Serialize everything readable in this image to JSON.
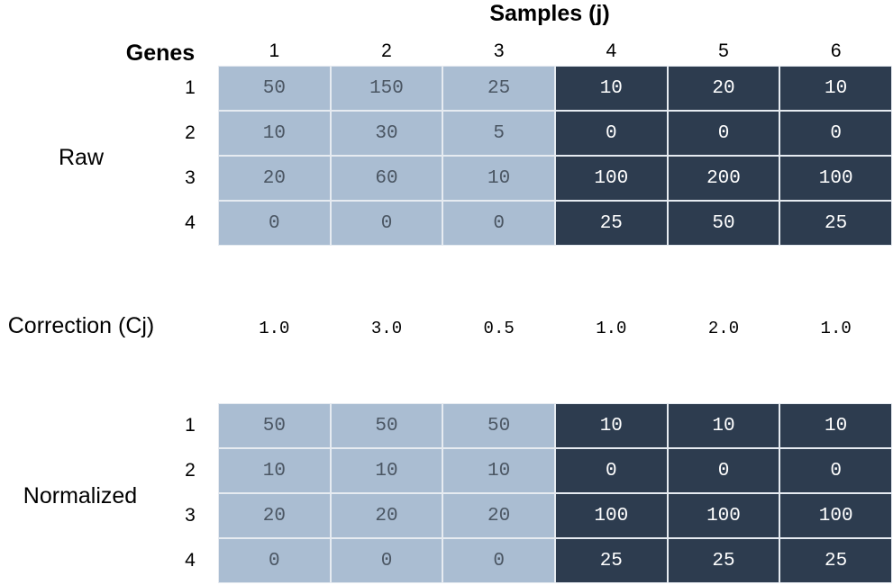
{
  "title": "Samples (j)",
  "genes_label": "Genes",
  "sample_columns": [
    "1",
    "2",
    "3",
    "4",
    "5",
    "6"
  ],
  "gene_rows": [
    "1",
    "2",
    "3",
    "4"
  ],
  "colors": {
    "group_a": "#aabdd2",
    "group_b": "#2d3c4f",
    "grid_lines": "#e6ebf1"
  },
  "raw": {
    "label": "Raw",
    "rows": [
      [
        "50",
        "150",
        "25",
        "10",
        "20",
        "10"
      ],
      [
        "10",
        "30",
        "5",
        "0",
        "0",
        "0"
      ],
      [
        "20",
        "60",
        "10",
        "100",
        "200",
        "100"
      ],
      [
        "0",
        "0",
        "0",
        "25",
        "50",
        "25"
      ]
    ]
  },
  "correction": {
    "label": "Correction (Cj)",
    "values": [
      "1.0",
      "3.0",
      "0.5",
      "1.0",
      "2.0",
      "1.0"
    ]
  },
  "normalized": {
    "label": "Normalized",
    "rows": [
      [
        "50",
        "50",
        "50",
        "10",
        "10",
        "10"
      ],
      [
        "10",
        "10",
        "10",
        "0",
        "0",
        "0"
      ],
      [
        "20",
        "20",
        "20",
        "100",
        "100",
        "100"
      ],
      [
        "0",
        "0",
        "0",
        "25",
        "25",
        "25"
      ]
    ]
  }
}
